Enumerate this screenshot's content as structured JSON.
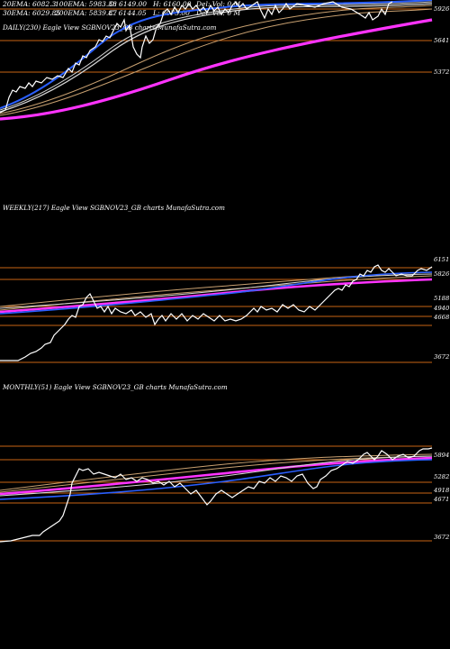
{
  "header": {
    "ema20": "20EMA: 6082.3",
    "ema100": "100EMA: 5983.38",
    "open": "O: 6149.00",
    "high": "H: 6160.00",
    "vol": "Del: Vol: 0  M",
    "ema30": "30EMA: 6029.85",
    "ema200": "200EMA: 5839.87",
    "close": "C: 6144.05",
    "low": "L: 6075.00",
    "delvol": "Del: Vol: 0  M"
  },
  "colors": {
    "background": "#000000",
    "price": "#ffffff",
    "ema_blue": "#2a5fff",
    "ema_magenta": "#ff33ff",
    "ema_tan": "#c8a070",
    "level": "#c86414"
  },
  "chart_data": [
    {
      "type": "line",
      "name": "daily",
      "title": "DAILY(230) Eagle  View  SGBNOV23_GB charts MunafaSutra.com",
      "levels": [
        "5926",
        "5641",
        "5372"
      ],
      "series": [
        {
          "name": "price",
          "color": "#ffffff",
          "values": [
            5230,
            5260,
            5300,
            5370,
            5390,
            5400,
            5420,
            5440,
            5470,
            5510,
            5540,
            5560,
            5600,
            5640,
            5660,
            5690,
            5720,
            5760,
            5800,
            5850,
            5880,
            5900,
            5930,
            5950,
            5950,
            5940,
            5920,
            5890,
            5870,
            5850,
            5860,
            5870,
            5880,
            5900,
            5920,
            5930,
            5940,
            5950,
            5960,
            5980,
            6010,
            6050,
            6080,
            6100,
            6110,
            6100,
            6090,
            6080,
            6070,
            6080,
            6090,
            6100,
            6110,
            6120,
            6130,
            6140,
            6150,
            6140,
            6130,
            6120,
            6110,
            6100,
            6090,
            6120,
            6140,
            6150,
            6160,
            6150,
            6144
          ]
        }
      ]
    },
    {
      "type": "line",
      "name": "weekly",
      "title": "WEEKLY(217) Eagle  View  SGBNOV23_GB charts MunafaSutra.com",
      "levels": [
        "6151",
        "5826",
        "5188",
        "4940",
        "4668",
        "3672"
      ],
      "series": [
        {
          "name": "price",
          "color": "#ffffff",
          "values": [
            3672,
            3672,
            3690,
            3720,
            3760,
            3820,
            3900,
            3980,
            4050,
            4150,
            4250,
            4300,
            4350,
            4400,
            4500,
            4650,
            4800,
            4900,
            4950,
            5000,
            5050,
            5100,
            5150,
            5180,
            5200,
            5250,
            5300,
            5350,
            5400,
            5450,
            5500,
            5550,
            5600,
            5650,
            5700,
            5750,
            5800,
            5850,
            5900,
            5950,
            6000,
            6050,
            6100,
            6120,
            6151
          ]
        }
      ]
    },
    {
      "type": "line",
      "name": "monthly",
      "title": "MONTHLY(51) Eagle  View  SGBNOV23_GB charts MunafaSutra.com",
      "levels": [
        "5894",
        "5282",
        "4918",
        "4671",
        "3672"
      ],
      "series": [
        {
          "name": "price",
          "color": "#ffffff",
          "values": [
            3672,
            3672,
            3700,
            3720,
            3800,
            3900,
            4100,
            4400,
            4700,
            4800,
            4850,
            4900,
            4930,
            4950,
            4980,
            5000,
            5050,
            5100,
            5150,
            5200,
            5250,
            5300,
            5350,
            5400,
            5450,
            5500,
            5550,
            5600,
            5650,
            5700,
            5750,
            5800,
            5850,
            5894,
            5950,
            6000,
            6050,
            6100,
            6151
          ]
        }
      ]
    }
  ]
}
